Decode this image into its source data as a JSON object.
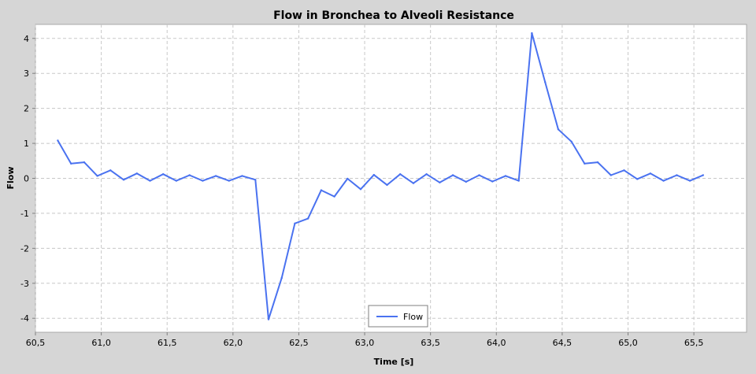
{
  "colors": {
    "background": "#d6d6d6",
    "plot_background": "#ffffff",
    "gridline": "#c8c8c8",
    "series_flow": "#4a72f0"
  },
  "chart_data": {
    "type": "line",
    "title": "Flow in Bronchea to Alveoli Resistance",
    "xlabel": "Time [s]",
    "ylabel": "Flow",
    "xlim": [
      60.5,
      65.9
    ],
    "ylim": [
      -4.4,
      4.4
    ],
    "x_ticks": [
      60.5,
      61.0,
      61.5,
      62.0,
      62.5,
      63.0,
      63.5,
      64.0,
      64.5,
      65.0,
      65.5
    ],
    "x_tick_labels": [
      "60,5",
      "61,0",
      "61,5",
      "62,0",
      "62,5",
      "63,0",
      "63,5",
      "64,0",
      "64,5",
      "65,0",
      "65,5"
    ],
    "y_ticks": [
      -4,
      -3,
      -2,
      -1,
      0,
      1,
      2,
      3,
      4
    ],
    "y_tick_labels": [
      "-4",
      "-3",
      "-2",
      "-1",
      "0",
      "1",
      "2",
      "3",
      "4"
    ],
    "grid": true,
    "legend_position": "bottom-center",
    "series": [
      {
        "name": "Flow",
        "color": "#4a72f0",
        "x": [
          60.67,
          60.77,
          60.87,
          60.97,
          61.07,
          61.17,
          61.27,
          61.37,
          61.47,
          61.57,
          61.67,
          61.77,
          61.87,
          61.97,
          62.07,
          62.17,
          62.27,
          62.37,
          62.47,
          62.57,
          62.67,
          62.77,
          62.87,
          62.97,
          63.07,
          63.17,
          63.27,
          63.37,
          63.47,
          63.57,
          63.67,
          63.77,
          63.87,
          63.97,
          64.07,
          64.17,
          64.27,
          64.37,
          64.47,
          64.57,
          64.67,
          64.77,
          64.87,
          64.97,
          65.07,
          65.17,
          65.27,
          65.37,
          65.47,
          65.57
        ],
        "y": [
          1.08,
          0.42,
          0.46,
          0.07,
          0.23,
          -0.04,
          0.14,
          -0.07,
          0.12,
          -0.07,
          0.09,
          -0.07,
          0.07,
          -0.07,
          0.07,
          -0.04,
          -4.03,
          -2.85,
          -1.29,
          -1.15,
          -0.34,
          -0.52,
          -0.01,
          -0.31,
          0.1,
          -0.19,
          0.12,
          -0.14,
          0.12,
          -0.12,
          0.09,
          -0.1,
          0.09,
          -0.09,
          0.07,
          -0.07,
          4.15,
          2.75,
          1.4,
          1.05,
          0.42,
          0.46,
          0.09,
          0.23,
          -0.02,
          0.14,
          -0.07,
          0.09,
          -0.07,
          0.09
        ]
      }
    ]
  }
}
